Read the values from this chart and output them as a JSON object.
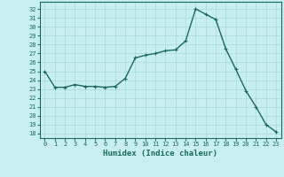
{
  "x": [
    0,
    1,
    2,
    3,
    4,
    5,
    6,
    7,
    8,
    9,
    10,
    11,
    12,
    13,
    14,
    15,
    16,
    17,
    18,
    19,
    20,
    21,
    22,
    23
  ],
  "y": [
    25.0,
    23.2,
    23.2,
    23.5,
    23.3,
    23.3,
    23.2,
    23.3,
    24.2,
    26.5,
    26.8,
    27.0,
    27.3,
    27.4,
    28.4,
    32.0,
    31.4,
    30.8,
    27.5,
    25.2,
    22.8,
    21.0,
    19.0,
    18.2
  ],
  "line_color": "#1a6b5a",
  "marker": "+",
  "marker_size": 3,
  "xlabel": "Humidex (Indice chaleur)",
  "xlim": [
    -0.5,
    23.5
  ],
  "ylim": [
    17.5,
    32.8
  ],
  "yticks": [
    18,
    19,
    20,
    21,
    22,
    23,
    24,
    25,
    26,
    27,
    28,
    29,
    30,
    31,
    32
  ],
  "xticks": [
    0,
    1,
    2,
    3,
    4,
    5,
    6,
    7,
    8,
    9,
    10,
    11,
    12,
    13,
    14,
    15,
    16,
    17,
    18,
    19,
    20,
    21,
    22,
    23
  ],
  "bg_color": "#c8eef0",
  "grid_color": "#a8d8da",
  "tick_color": "#1a6b5a",
  "label_color": "#1a6b5a",
  "linewidth": 1.0,
  "tick_fontsize": 5.0,
  "xlabel_fontsize": 6.5
}
